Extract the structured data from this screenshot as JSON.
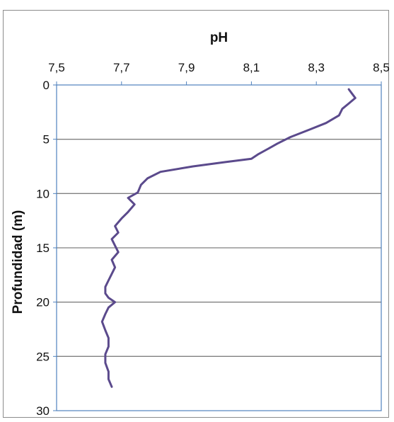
{
  "chart_data": {
    "type": "line",
    "title": "",
    "xlabel": "pH",
    "ylabel": "Profundidad (m)",
    "xlim": [
      7.5,
      8.5
    ],
    "ylim": [
      0,
      30
    ],
    "y_inverted": true,
    "x_axis_position": "top",
    "grid": "horizontal",
    "x_ticks": [
      7.5,
      7.7,
      7.9,
      8.1,
      8.3,
      8.5
    ],
    "x_tick_labels": [
      "7,5",
      "7,7",
      "7,9",
      "8,1",
      "8,3",
      "8,5"
    ],
    "y_ticks": [
      0,
      5,
      10,
      15,
      20,
      25,
      30
    ],
    "y_tick_labels": [
      "0",
      "5",
      "10",
      "15",
      "20",
      "25",
      "30"
    ],
    "line_color": "#5b4a8c",
    "grid_color": "#808080",
    "axis_color": "#4f81bd",
    "series": [
      {
        "points": [
          [
            8.4,
            0.4
          ],
          [
            8.41,
            0.8
          ],
          [
            8.42,
            1.2
          ],
          [
            8.4,
            1.7
          ],
          [
            8.38,
            2.2
          ],
          [
            8.37,
            2.8
          ],
          [
            8.33,
            3.5
          ],
          [
            8.28,
            4.1
          ],
          [
            8.22,
            4.8
          ],
          [
            8.18,
            5.4
          ],
          [
            8.15,
            5.9
          ],
          [
            8.12,
            6.4
          ],
          [
            8.1,
            6.8
          ],
          [
            8.02,
            7.1
          ],
          [
            7.92,
            7.5
          ],
          [
            7.82,
            8.0
          ],
          [
            7.78,
            8.6
          ],
          [
            7.76,
            9.2
          ],
          [
            7.75,
            9.9
          ],
          [
            7.72,
            10.4
          ],
          [
            7.74,
            11.0
          ],
          [
            7.72,
            11.7
          ],
          [
            7.7,
            12.3
          ],
          [
            7.68,
            13.0
          ],
          [
            7.69,
            13.6
          ],
          [
            7.67,
            14.2
          ],
          [
            7.68,
            14.8
          ],
          [
            7.69,
            15.4
          ],
          [
            7.67,
            16.1
          ],
          [
            7.68,
            16.8
          ],
          [
            7.67,
            17.4
          ],
          [
            7.66,
            18.0
          ],
          [
            7.65,
            18.6
          ],
          [
            7.65,
            19.2
          ],
          [
            7.66,
            19.6
          ],
          [
            7.68,
            20.0
          ],
          [
            7.66,
            20.5
          ],
          [
            7.65,
            21.1
          ],
          [
            7.64,
            21.8
          ],
          [
            7.65,
            22.6
          ],
          [
            7.66,
            23.3
          ],
          [
            7.66,
            24.1
          ],
          [
            7.65,
            24.8
          ],
          [
            7.65,
            25.6
          ],
          [
            7.66,
            26.4
          ],
          [
            7.66,
            27.1
          ],
          [
            7.67,
            27.8
          ]
        ]
      }
    ]
  }
}
